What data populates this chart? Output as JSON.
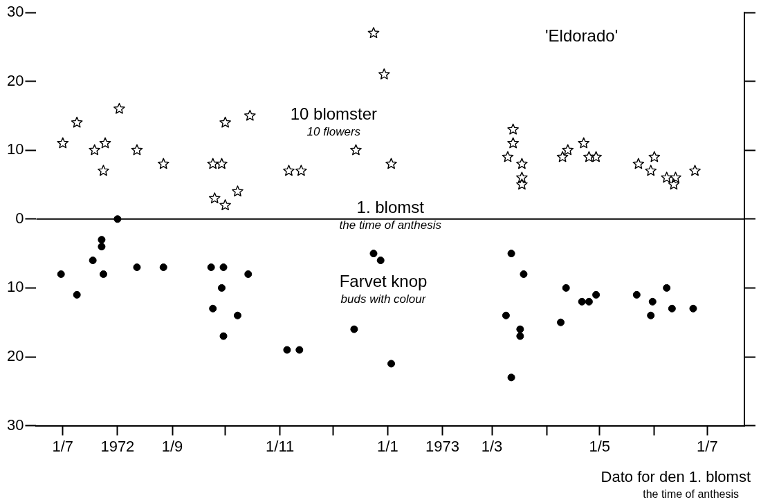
{
  "chart_data": {
    "type": "scatter",
    "xlabel": "Dato for den 1. blomst\nthe time of anthesis",
    "xlim": [
      "1972-06-16",
      "1973-07-22"
    ],
    "xticks": [
      {
        "value": "1972-07-01",
        "label": "1/7"
      },
      {
        "value": "1972-08-01",
        "label": "1972"
      },
      {
        "value": "1972-09-01",
        "label": "1/9"
      },
      {
        "value": "1972-10-01",
        "label": null
      },
      {
        "value": "1972-11-01",
        "label": "1/11"
      },
      {
        "value": "1972-12-01",
        "label": null
      },
      {
        "value": "1973-01-01",
        "label": "1/1"
      },
      {
        "value": "1973-02-01",
        "label": "1973"
      },
      {
        "value": "1973-03-01",
        "label": "1/3"
      },
      {
        "value": "1973-04-01",
        "label": null
      },
      {
        "value": "1973-05-01",
        "label": "1/5"
      },
      {
        "value": "1973-06-01",
        "label": null
      },
      {
        "value": "1973-07-01",
        "label": "1/7"
      }
    ],
    "ylim": [
      -30,
      30
    ],
    "yticks": [
      {
        "value": -30,
        "label": "30"
      },
      {
        "value": -20,
        "label": "20"
      },
      {
        "value": -10,
        "label": "10"
      },
      0,
      10,
      20,
      30
    ],
    "grid": false,
    "legend": false,
    "series": [
      {
        "type": "scatter",
        "marker": "star",
        "color": "#000000",
        "x": [
          "1972-07-01",
          "1972-07-09",
          "1972-07-19",
          "1972-07-25",
          "1972-07-24",
          "1972-08-02",
          "1972-08-12",
          "1972-08-27",
          "1972-09-24",
          "1972-09-29",
          "1972-10-01",
          "1972-09-25",
          "1972-10-01",
          "1972-10-08",
          "1972-10-15",
          "1972-12-24",
          "1972-12-30",
          "1972-12-14",
          "1973-01-03",
          "1972-11-06",
          "1972-11-13",
          "1973-03-13",
          "1973-03-13",
          "1973-03-10",
          "1973-03-18",
          "1973-03-18",
          "1973-03-18",
          "1973-04-10",
          "1973-04-13",
          "1973-04-22",
          "1973-04-25",
          "1973-04-29",
          "1973-05-23",
          "1973-06-01",
          "1973-05-30",
          "1973-06-08",
          "1973-06-13",
          "1973-06-12",
          "1973-06-24"
        ],
        "values": [
          11,
          14,
          10,
          11,
          7,
          16,
          10,
          8,
          8,
          8,
          14,
          3,
          2,
          4,
          15,
          27,
          21,
          10,
          8,
          7,
          7,
          13,
          11,
          9,
          8,
          6,
          5,
          9,
          10,
          11,
          9,
          9,
          8,
          9,
          7,
          6,
          6,
          5,
          7
        ]
      },
      {
        "type": "scatter",
        "marker": "circle",
        "color": "#000000",
        "x": [
          "1972-08-01",
          "1972-07-23",
          "1972-07-23",
          "1972-07-18",
          "1972-06-30",
          "1972-07-24",
          "1972-07-09",
          "1972-08-12",
          "1972-08-27",
          "1972-09-23",
          "1972-09-30",
          "1972-10-14",
          "1972-09-29",
          "1972-09-24",
          "1972-10-08",
          "1972-09-30",
          "1972-12-24",
          "1972-12-28",
          "1972-12-13",
          "1972-11-05",
          "1972-11-12",
          "1973-01-03",
          "1973-03-12",
          "1973-03-19",
          "1973-03-09",
          "1973-03-17",
          "1973-03-17",
          "1973-03-12",
          "1973-04-12",
          "1973-04-09",
          "1973-04-21",
          "1973-04-25",
          "1973-04-29",
          "1973-05-22",
          "1973-05-31",
          "1973-05-30",
          "1973-06-08",
          "1973-06-11",
          "1973-06-23"
        ],
        "values": [
          0,
          -3,
          -4,
          -6,
          -8,
          -8,
          -11,
          -7,
          -7,
          -7,
          -7,
          -8,
          -10,
          -13,
          -14,
          -17,
          -5,
          -6,
          -16,
          -19,
          -19,
          -21,
          -5,
          -8,
          -14,
          -16,
          -17,
          -23,
          -10,
          -15,
          -12,
          -12,
          -11,
          -11,
          -12,
          -14,
          -10,
          -13,
          -13
        ]
      }
    ],
    "ref_lines": [
      {
        "axis": "y",
        "value": 0,
        "color": "#000000",
        "label": "1. blomst\nthe time of anthesis"
      }
    ],
    "annotations": [
      "'Eldorado'",
      "10 blomster\n10 flowers",
      "Farvet knop\nbuds with colour"
    ]
  }
}
